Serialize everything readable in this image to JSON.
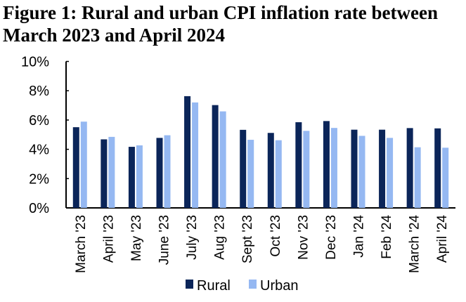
{
  "chart_data": {
    "type": "bar",
    "title": "Figure 1: Rural and urban CPI inflation rate between March 2023 and April 2024",
    "xlabel": "",
    "ylabel": "",
    "ylim": [
      0,
      10
    ],
    "yticks": [
      "0%",
      "2%",
      "4%",
      "6%",
      "8%",
      "10%"
    ],
    "grid": false,
    "legend": "bottom",
    "categories": [
      "March '23",
      "April '23",
      "May '23",
      "June '23",
      "July '23",
      "Aug '23",
      "Sept '23",
      "Oct '23",
      "Nov '23",
      "Dec '23",
      "Jan '24",
      "Feb '24",
      "March '24",
      "April '24"
    ],
    "series": [
      {
        "name": "Rural",
        "color": "#0b2559",
        "values": [
          5.51,
          4.68,
          4.17,
          4.78,
          7.63,
          7.02,
          5.33,
          5.12,
          5.85,
          5.93,
          5.34,
          5.34,
          5.45,
          5.43
        ]
      },
      {
        "name": "Urban",
        "color": "#95b8f2",
        "values": [
          5.89,
          4.85,
          4.27,
          4.96,
          7.2,
          6.59,
          4.65,
          4.62,
          5.26,
          5.46,
          4.92,
          4.78,
          4.14,
          4.11
        ]
      }
    ]
  }
}
